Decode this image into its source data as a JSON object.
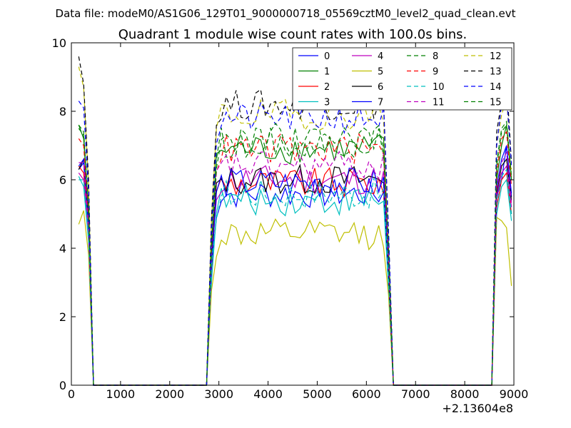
{
  "figure": {
    "suptitle": "Data file: modeM0/AS1G06_129T01_9000000718_05569cztM0_level2_quad_clean.evt",
    "title": "Quadrant 1 module wise count rates with 100.0s bins."
  },
  "chart_data": {
    "type": "line",
    "xlim": [
      0,
      9000
    ],
    "ylim": [
      0,
      10
    ],
    "x_offset_label": "+2.13604e8",
    "xticks": [
      0,
      1000,
      2000,
      3000,
      4000,
      5000,
      6000,
      7000,
      8000,
      9000
    ],
    "yticks": [
      0,
      2,
      4,
      6,
      8,
      10
    ],
    "grid": false,
    "legend_position": "top-right",
    "legend_columns": 4,
    "series": [
      {
        "name": "0",
        "color": "#0000ff",
        "dash": "solid"
      },
      {
        "name": "1",
        "color": "#008000",
        "dash": "solid"
      },
      {
        "name": "2",
        "color": "#ff0000",
        "dash": "solid"
      },
      {
        "name": "3",
        "color": "#00bfbf",
        "dash": "solid"
      },
      {
        "name": "4",
        "color": "#bf00bf",
        "dash": "solid"
      },
      {
        "name": "5",
        "color": "#bfbf00",
        "dash": "solid"
      },
      {
        "name": "6",
        "color": "#000000",
        "dash": "solid"
      },
      {
        "name": "7",
        "color": "#0000ff",
        "dash": "solid"
      },
      {
        "name": "8",
        "color": "#008000",
        "dash": "dashed"
      },
      {
        "name": "9",
        "color": "#ff0000",
        "dash": "dashed"
      },
      {
        "name": "10",
        "color": "#00bfbf",
        "dash": "dashed"
      },
      {
        "name": "11",
        "color": "#bf00bf",
        "dash": "dashed"
      },
      {
        "name": "12",
        "color": "#bfbf00",
        "dash": "dashed"
      },
      {
        "name": "13",
        "color": "#000000",
        "dash": "dashed"
      },
      {
        "name": "14",
        "color": "#0000ff",
        "dash": "dashed"
      },
      {
        "name": "15",
        "color": "#008000",
        "dash": "dashed"
      }
    ],
    "x": {
      "segment1": [
        150,
        250,
        350,
        450
      ],
      "gap1": [
        450,
        2750
      ],
      "segment2_start": 2750,
      "segment2_step": 100,
      "segment2_end": 6550,
      "gap2": [
        6550,
        8550
      ],
      "segment3": [
        8550,
        8650,
        8750,
        8850,
        8950
      ]
    },
    "levels": {
      "0": {
        "seg1": [
          6.3,
          6.5,
          4.5,
          0
        ],
        "mean2": 5.6,
        "seg3": [
          0,
          5.5,
          6.0,
          7.0,
          5.5
        ]
      },
      "1": {
        "seg1": [
          7.6,
          7.2,
          5.0,
          0
        ],
        "mean2": 6.9,
        "seg3": [
          0,
          6.0,
          7.0,
          7.6,
          6.0
        ]
      },
      "2": {
        "seg1": [
          6.4,
          6.2,
          4.5,
          0
        ],
        "mean2": 5.9,
        "seg3": [
          0,
          5.2,
          6.0,
          6.2,
          5.0
        ]
      },
      "3": {
        "seg1": [
          6.1,
          5.8,
          4.2,
          0
        ],
        "mean2": 5.4,
        "seg3": [
          0,
          5.0,
          5.8,
          6.0,
          4.8
        ]
      },
      "4": {
        "seg1": [
          6.2,
          6.0,
          4.5,
          0
        ],
        "mean2": 6.0,
        "seg3": [
          0,
          5.5,
          6.2,
          6.4,
          5.2
        ]
      },
      "5": {
        "seg1": [
          4.7,
          5.1,
          3.8,
          0
        ],
        "mean2": 4.4,
        "seg3": [
          0,
          4.9,
          4.8,
          4.6,
          2.9
        ]
      },
      "6": {
        "seg1": [
          6.3,
          6.6,
          4.8,
          0
        ],
        "mean2": 6.0,
        "seg3": [
          0,
          5.6,
          6.4,
          6.6,
          5.4
        ]
      },
      "7": {
        "seg1": [
          6.4,
          6.6,
          4.6,
          0
        ],
        "mean2": 5.9,
        "seg3": [
          0,
          5.8,
          6.6,
          7.0,
          5.6
        ]
      },
      "8": {
        "seg1": [
          7.5,
          7.3,
          5.0,
          0
        ],
        "mean2": 7.1,
        "seg3": [
          0,
          6.4,
          7.4,
          7.6,
          6.0
        ]
      },
      "9": {
        "seg1": [
          7.2,
          7.0,
          5.0,
          0
        ],
        "mean2": 6.9,
        "seg3": [
          0,
          6.2,
          7.2,
          7.4,
          5.8
        ]
      },
      "10": {
        "seg1": [
          6.0,
          6.0,
          4.3,
          0
        ],
        "mean2": 5.6,
        "seg3": [
          0,
          5.3,
          6.1,
          6.3,
          5.0
        ]
      },
      "11": {
        "seg1": [
          6.5,
          6.5,
          4.6,
          0
        ],
        "mean2": 6.4,
        "seg3": [
          0,
          5.7,
          6.5,
          6.8,
          5.3
        ]
      },
      "12": {
        "seg1": [
          9.3,
          8.7,
          5.8,
          0
        ],
        "mean2": 7.9,
        "seg3": [
          0,
          7.0,
          7.9,
          8.4,
          6.3
        ]
      },
      "13": {
        "seg1": [
          9.6,
          8.8,
          6.0,
          0
        ],
        "mean2": 8.2,
        "seg3": [
          0,
          7.4,
          8.3,
          8.9,
          6.5
        ]
      },
      "14": {
        "seg1": [
          8.3,
          8.1,
          5.6,
          0
        ],
        "mean2": 7.8,
        "seg3": [
          0,
          7.0,
          8.2,
          8.5,
          6.4
        ]
      },
      "15": {
        "seg1": [
          7.6,
          7.4,
          5.2,
          0
        ],
        "mean2": 7.2,
        "seg3": [
          0,
          6.5,
          7.5,
          7.7,
          6.1
        ]
      }
    }
  }
}
